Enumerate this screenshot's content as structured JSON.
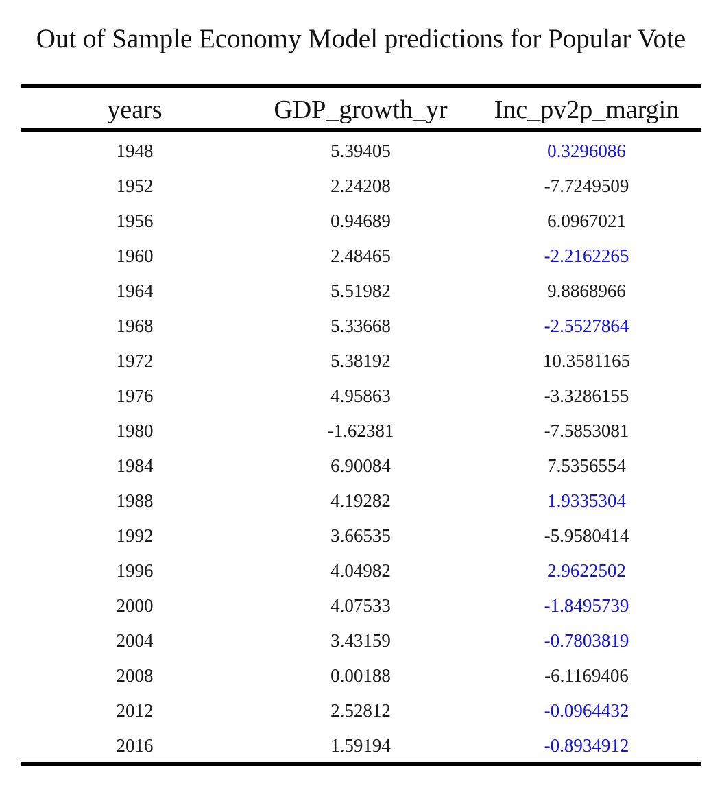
{
  "title": "Out of Sample Economy Model predictions for Popular Vote",
  "chart_data": {
    "type": "table",
    "title": "Out of Sample Economy Model predictions for Popular Vote",
    "columns": [
      "years",
      "GDP_growth_yr",
      "Inc_pv2p_margin"
    ],
    "rows": [
      {
        "years": "1948",
        "gdp": "5.39405",
        "margin": "0.3296086",
        "highlight": true
      },
      {
        "years": "1952",
        "gdp": "2.24208",
        "margin": "-7.7249509",
        "highlight": false
      },
      {
        "years": "1956",
        "gdp": "0.94689",
        "margin": "6.0967021",
        "highlight": false
      },
      {
        "years": "1960",
        "gdp": "2.48465",
        "margin": "-2.2162265",
        "highlight": true
      },
      {
        "years": "1964",
        "gdp": "5.51982",
        "margin": "9.8868966",
        "highlight": false
      },
      {
        "years": "1968",
        "gdp": "5.33668",
        "margin": "-2.5527864",
        "highlight": true
      },
      {
        "years": "1972",
        "gdp": "5.38192",
        "margin": "10.3581165",
        "highlight": false
      },
      {
        "years": "1976",
        "gdp": "4.95863",
        "margin": "-3.3286155",
        "highlight": false
      },
      {
        "years": "1980",
        "gdp": "-1.62381",
        "margin": "-7.5853081",
        "highlight": false
      },
      {
        "years": "1984",
        "gdp": "6.90084",
        "margin": "7.5356554",
        "highlight": false
      },
      {
        "years": "1988",
        "gdp": "4.19282",
        "margin": "1.9335304",
        "highlight": true
      },
      {
        "years": "1992",
        "gdp": "3.66535",
        "margin": "-5.9580414",
        "highlight": false
      },
      {
        "years": "1996",
        "gdp": "4.04982",
        "margin": "2.9622502",
        "highlight": true
      },
      {
        "years": "2000",
        "gdp": "4.07533",
        "margin": "-1.8495739",
        "highlight": true
      },
      {
        "years": "2004",
        "gdp": "3.43159",
        "margin": "-0.7803819",
        "highlight": true
      },
      {
        "years": "2008",
        "gdp": "0.00188",
        "margin": "-6.1169406",
        "highlight": false
      },
      {
        "years": "2012",
        "gdp": "2.52812",
        "margin": "-0.0964432",
        "highlight": true
      },
      {
        "years": "2016",
        "gdp": "1.59194",
        "margin": "-0.8934912",
        "highlight": true
      }
    ]
  },
  "colors": {
    "text": "#1a1a1a",
    "highlight": "#1414e6",
    "rule": "#000000",
    "background": "#ffffff"
  }
}
